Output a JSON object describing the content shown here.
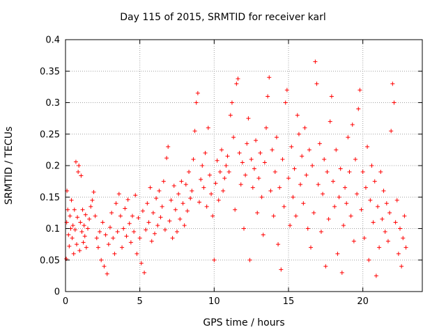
{
  "chart_data": {
    "type": "scatter",
    "title": "Day 115 of 2015, SRMTID for receiver karl",
    "xlabel": "GPS time / hours",
    "ylabel": "SRMTID / TECUs",
    "xlim": [
      0,
      24
    ],
    "ylim": [
      0,
      0.4
    ],
    "xticks": [
      0,
      5,
      10,
      15,
      20
    ],
    "xtick_labels": [
      "0",
      "5",
      "10",
      "15",
      "20"
    ],
    "yticks": [
      0,
      0.05,
      0.1,
      0.15,
      0.2,
      0.25,
      0.3,
      0.35,
      0.4
    ],
    "ytick_labels": [
      "0",
      "0.05",
      "0.1",
      "0.15",
      "0.2",
      "0.25",
      "0.3",
      "0.35",
      "0.4"
    ],
    "grid": true,
    "marker": "+",
    "colors": {
      "points": "#ff0000",
      "grid": "#a0a0a0",
      "axes": "#000000"
    },
    "points": [
      [
        0.05,
        0.052
      ],
      [
        0.08,
        0.11
      ],
      [
        0.1,
        0.16
      ],
      [
        0.15,
        0.13
      ],
      [
        0.2,
        0.09
      ],
      [
        0.25,
        0.072
      ],
      [
        0.3,
        0.12
      ],
      [
        0.35,
        0.1
      ],
      [
        0.4,
        0.145
      ],
      [
        0.45,
        0.085
      ],
      [
        0.5,
        0.105
      ],
      [
        0.55,
        0.06
      ],
      [
        0.6,
        0.13
      ],
      [
        0.65,
        0.098
      ],
      [
        0.7,
        0.206
      ],
      [
        0.75,
        0.075
      ],
      [
        0.8,
        0.118
      ],
      [
        0.85,
        0.19
      ],
      [
        0.9,
        0.2
      ],
      [
        0.95,
        0.065
      ],
      [
        1.0,
        0.11
      ],
      [
        1.05,
        0.184
      ],
      [
        1.1,
        0.095
      ],
      [
        1.15,
        0.13
      ],
      [
        1.2,
        0.078
      ],
      [
        1.25,
        0.105
      ],
      [
        1.3,
        0.088
      ],
      [
        1.35,
        0.122
      ],
      [
        1.4,
        0.07
      ],
      [
        1.5,
        0.1
      ],
      [
        1.6,
        0.115
      ],
      [
        1.7,
        0.135
      ],
      [
        1.8,
        0.145
      ],
      [
        1.9,
        0.158
      ],
      [
        2.0,
        0.12
      ],
      [
        2.1,
        0.085
      ],
      [
        2.2,
        0.07
      ],
      [
        2.3,
        0.095
      ],
      [
        2.4,
        0.05
      ],
      [
        2.5,
        0.11
      ],
      [
        2.6,
        0.04
      ],
      [
        2.7,
        0.09
      ],
      [
        2.8,
        0.028
      ],
      [
        2.9,
        0.075
      ],
      [
        3.0,
        0.102
      ],
      [
        3.1,
        0.125
      ],
      [
        3.2,
        0.085
      ],
      [
        3.3,
        0.06
      ],
      [
        3.4,
        0.14
      ],
      [
        3.5,
        0.095
      ],
      [
        3.6,
        0.155
      ],
      [
        3.7,
        0.12
      ],
      [
        3.8,
        0.07
      ],
      [
        3.9,
        0.1
      ],
      [
        4.0,
        0.132
      ],
      [
        4.1,
        0.088
      ],
      [
        4.2,
        0.146
      ],
      [
        4.3,
        0.108
      ],
      [
        4.4,
        0.078
      ],
      [
        4.5,
        0.12
      ],
      [
        4.6,
        0.095
      ],
      [
        4.7,
        0.153
      ],
      [
        4.8,
        0.06
      ],
      [
        4.9,
        0.117
      ],
      [
        5.0,
        0.085
      ],
      [
        5.1,
        0.045
      ],
      [
        5.2,
        0.128
      ],
      [
        5.3,
        0.03
      ],
      [
        5.4,
        0.098
      ],
      [
        5.5,
        0.14
      ],
      [
        5.6,
        0.11
      ],
      [
        5.7,
        0.165
      ],
      [
        5.8,
        0.08
      ],
      [
        5.9,
        0.125
      ],
      [
        6.0,
        0.092
      ],
      [
        6.1,
        0.148
      ],
      [
        6.2,
        0.105
      ],
      [
        6.3,
        0.16
      ],
      [
        6.4,
        0.118
      ],
      [
        6.5,
        0.135
      ],
      [
        6.6,
        0.175
      ],
      [
        6.7,
        0.098
      ],
      [
        6.8,
        0.212
      ],
      [
        6.9,
        0.23
      ],
      [
        7.0,
        0.112
      ],
      [
        7.1,
        0.145
      ],
      [
        7.2,
        0.085
      ],
      [
        7.3,
        0.168
      ],
      [
        7.4,
        0.13
      ],
      [
        7.5,
        0.095
      ],
      [
        7.6,
        0.155
      ],
      [
        7.7,
        0.115
      ],
      [
        7.8,
        0.175
      ],
      [
        7.9,
        0.14
      ],
      [
        8.0,
        0.105
      ],
      [
        8.1,
        0.17
      ],
      [
        8.2,
        0.128
      ],
      [
        8.3,
        0.19
      ],
      [
        8.4,
        0.148
      ],
      [
        8.5,
        0.16
      ],
      [
        8.6,
        0.21
      ],
      [
        8.7,
        0.255
      ],
      [
        8.8,
        0.3
      ],
      [
        8.9,
        0.315
      ],
      [
        9.0,
        0.142
      ],
      [
        9.1,
        0.178
      ],
      [
        9.2,
        0.2
      ],
      [
        9.3,
        0.165
      ],
      [
        9.4,
        0.22
      ],
      [
        9.5,
        0.135
      ],
      [
        9.6,
        0.26
      ],
      [
        9.7,
        0.185
      ],
      [
        9.8,
        0.155
      ],
      [
        9.9,
        0.12
      ],
      [
        10.0,
        0.05
      ],
      [
        10.1,
        0.172
      ],
      [
        10.2,
        0.208
      ],
      [
        10.3,
        0.145
      ],
      [
        10.4,
        0.19
      ],
      [
        10.5,
        0.225
      ],
      [
        10.6,
        0.16
      ],
      [
        10.7,
        0.18
      ],
      [
        10.8,
        0.2
      ],
      [
        10.9,
        0.215
      ],
      [
        11.0,
        0.19
      ],
      [
        11.1,
        0.28
      ],
      [
        11.2,
        0.3
      ],
      [
        11.3,
        0.245
      ],
      [
        11.4,
        0.13
      ],
      [
        11.5,
        0.33
      ],
      [
        11.6,
        0.338
      ],
      [
        11.7,
        0.22
      ],
      [
        11.8,
        0.17
      ],
      [
        11.9,
        0.205
      ],
      [
        12.0,
        0.1
      ],
      [
        12.1,
        0.185
      ],
      [
        12.2,
        0.235
      ],
      [
        12.3,
        0.275
      ],
      [
        12.4,
        0.05
      ],
      [
        12.5,
        0.21
      ],
      [
        12.6,
        0.165
      ],
      [
        12.7,
        0.195
      ],
      [
        12.8,
        0.24
      ],
      [
        12.9,
        0.125
      ],
      [
        13.0,
        0.18
      ],
      [
        13.1,
        0.22
      ],
      [
        13.2,
        0.15
      ],
      [
        13.3,
        0.09
      ],
      [
        13.4,
        0.205
      ],
      [
        13.5,
        0.26
      ],
      [
        13.6,
        0.31
      ],
      [
        13.7,
        0.34
      ],
      [
        13.8,
        0.16
      ],
      [
        13.9,
        0.225
      ],
      [
        14.0,
        0.12
      ],
      [
        14.1,
        0.19
      ],
      [
        14.2,
        0.245
      ],
      [
        14.3,
        0.075
      ],
      [
        14.4,
        0.165
      ],
      [
        14.5,
        0.035
      ],
      [
        14.6,
        0.21
      ],
      [
        14.7,
        0.135
      ],
      [
        14.8,
        0.3
      ],
      [
        14.9,
        0.32
      ],
      [
        15.0,
        0.18
      ],
      [
        15.1,
        0.105
      ],
      [
        15.2,
        0.23
      ],
      [
        15.3,
        0.15
      ],
      [
        15.4,
        0.195
      ],
      [
        15.5,
        0.12
      ],
      [
        15.6,
        0.28
      ],
      [
        15.7,
        0.25
      ],
      [
        15.8,
        0.17
      ],
      [
        15.9,
        0.215
      ],
      [
        16.0,
        0.14
      ],
      [
        16.1,
        0.26
      ],
      [
        16.2,
        0.185
      ],
      [
        16.3,
        0.1
      ],
      [
        16.4,
        0.225
      ],
      [
        16.5,
        0.07
      ],
      [
        16.6,
        0.2
      ],
      [
        16.7,
        0.125
      ],
      [
        16.8,
        0.365
      ],
      [
        16.9,
        0.33
      ],
      [
        17.0,
        0.17
      ],
      [
        17.1,
        0.235
      ],
      [
        17.2,
        0.095
      ],
      [
        17.3,
        0.155
      ],
      [
        17.4,
        0.21
      ],
      [
        17.5,
        0.04
      ],
      [
        17.6,
        0.19
      ],
      [
        17.7,
        0.115
      ],
      [
        17.8,
        0.27
      ],
      [
        17.9,
        0.31
      ],
      [
        18.0,
        0.175
      ],
      [
        18.1,
        0.135
      ],
      [
        18.2,
        0.225
      ],
      [
        18.3,
        0.06
      ],
      [
        18.4,
        0.15
      ],
      [
        18.5,
        0.195
      ],
      [
        18.6,
        0.03
      ],
      [
        18.7,
        0.105
      ],
      [
        18.8,
        0.165
      ],
      [
        18.9,
        0.14
      ],
      [
        19.0,
        0.245
      ],
      [
        19.1,
        0.19
      ],
      [
        19.2,
        0.12
      ],
      [
        19.3,
        0.265
      ],
      [
        19.4,
        0.08
      ],
      [
        19.5,
        0.21
      ],
      [
        19.6,
        0.155
      ],
      [
        19.7,
        0.29
      ],
      [
        19.8,
        0.32
      ],
      [
        19.9,
        0.13
      ],
      [
        20.0,
        0.19
      ],
      [
        20.1,
        0.085
      ],
      [
        20.2,
        0.165
      ],
      [
        20.3,
        0.23
      ],
      [
        20.4,
        0.05
      ],
      [
        20.5,
        0.145
      ],
      [
        20.6,
        0.2
      ],
      [
        20.7,
        0.11
      ],
      [
        20.8,
        0.175
      ],
      [
        20.9,
        0.025
      ],
      [
        21.0,
        0.135
      ],
      [
        21.1,
        0.07
      ],
      [
        21.2,
        0.19
      ],
      [
        21.3,
        0.115
      ],
      [
        21.4,
        0.16
      ],
      [
        21.5,
        0.095
      ],
      [
        21.6,
        0.14
      ],
      [
        21.7,
        0.08
      ],
      [
        21.8,
        0.125
      ],
      [
        21.9,
        0.255
      ],
      [
        22.0,
        0.33
      ],
      [
        22.1,
        0.3
      ],
      [
        22.2,
        0.11
      ],
      [
        22.3,
        0.145
      ],
      [
        22.4,
        0.06
      ],
      [
        22.5,
        0.1
      ],
      [
        22.6,
        0.04
      ],
      [
        22.7,
        0.085
      ],
      [
        22.8,
        0.12
      ],
      [
        22.9,
        0.07
      ]
    ]
  }
}
